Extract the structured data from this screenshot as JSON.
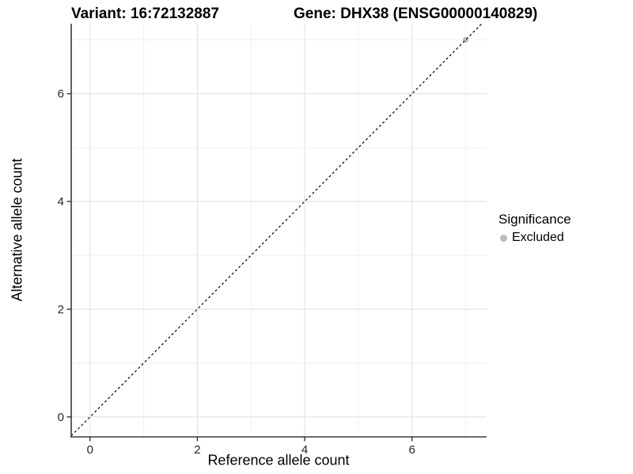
{
  "chart_data": {
    "type": "scatter",
    "title_left": "Variant: 16:72132887",
    "title_right": "Gene: DHX38 (ENSG00000140829)",
    "xlabel": "Reference allele count",
    "ylabel": "Alternative allele count",
    "xlim": [
      -0.35,
      7.39
    ],
    "ylim": [
      -0.37,
      7.3
    ],
    "x_major_ticks": [
      0,
      2,
      4,
      6
    ],
    "y_major_ticks": [
      0,
      2,
      4,
      6
    ],
    "x_minor_gridlines": [
      1,
      3,
      5,
      7
    ],
    "y_minor_gridlines": [
      1,
      3,
      5,
      7
    ],
    "grid": true,
    "legend_position": "right",
    "reference_line": {
      "slope": 1,
      "intercept": 0,
      "style": "dashed"
    },
    "series": [
      {
        "name": "Excluded",
        "color": "#bdbdbd",
        "points": [
          {
            "x": 7,
            "y": 7
          }
        ]
      }
    ],
    "legend": {
      "title": "Significance",
      "items": [
        {
          "label": "Excluded",
          "color": "#bdbdbd"
        }
      ]
    },
    "colors": {
      "point": "#bdbdbd",
      "grid_major": "#e4e4e4",
      "grid_minor": "#f0f0f0",
      "axis_line": "#3a3a3a",
      "tick_mark": "#333333",
      "tick_label": "#262626",
      "reference_line": "#000000",
      "panel_background": "#ffffff"
    }
  }
}
